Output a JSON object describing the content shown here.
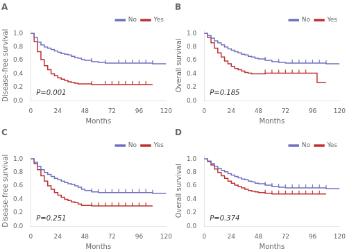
{
  "chart_data": [
    {
      "type": "line",
      "title": "A",
      "xlabel": "Months",
      "ylabel": "Disease-free survival",
      "annotation": "P=0.001",
      "xlim": [
        0,
        120
      ],
      "xticks": [
        0,
        24,
        48,
        72,
        96,
        120
      ],
      "ylim": [
        0,
        1.05
      ],
      "yticks": [
        {
          "value": 0,
          "label": "0.0"
        },
        0.2,
        0.4,
        0.6,
        0.8,
        {
          "value": 1.0,
          "label": "1.0"
        }
      ],
      "grid": false,
      "legend": "upper right",
      "line_style": "step",
      "series": [
        {
          "name": "No",
          "color": "#7070c0",
          "x": [
            0,
            3,
            6,
            9,
            12,
            15,
            18,
            21,
            24,
            27,
            30,
            33,
            36,
            39,
            42,
            45,
            48,
            54,
            60,
            66,
            72,
            78,
            84,
            90,
            96,
            102,
            108,
            120
          ],
          "values": [
            1.0,
            0.94,
            0.87,
            0.83,
            0.8,
            0.78,
            0.76,
            0.74,
            0.72,
            0.7,
            0.69,
            0.68,
            0.66,
            0.64,
            0.63,
            0.61,
            0.6,
            0.58,
            0.57,
            0.56,
            0.56,
            0.56,
            0.56,
            0.56,
            0.56,
            0.56,
            0.55,
            0.55
          ],
          "censor_x": [
            54,
            66,
            78,
            84,
            90,
            96,
            102,
            108
          ],
          "censor_y": [
            0.58,
            0.56,
            0.56,
            0.56,
            0.56,
            0.56,
            0.56,
            0.55
          ]
        },
        {
          "name": "Yes",
          "color": "#c03030",
          "x": [
            0,
            3,
            6,
            9,
            12,
            15,
            18,
            21,
            24,
            27,
            30,
            33,
            36,
            39,
            42,
            45,
            48,
            54,
            60,
            66,
            72,
            78,
            84,
            90,
            96,
            102,
            108
          ],
          "values": [
            1.0,
            0.88,
            0.73,
            0.61,
            0.52,
            0.46,
            0.4,
            0.37,
            0.34,
            0.32,
            0.3,
            0.28,
            0.27,
            0.26,
            0.25,
            0.25,
            0.25,
            0.24,
            0.24,
            0.24,
            0.24,
            0.24,
            0.24,
            0.24,
            0.24,
            0.24,
            0.24
          ],
          "censor_x": [
            54,
            66,
            72,
            78,
            84,
            90,
            96,
            102
          ],
          "censor_y": [
            0.24,
            0.24,
            0.24,
            0.24,
            0.24,
            0.24,
            0.24,
            0.24
          ]
        }
      ]
    },
    {
      "type": "line",
      "title": "B",
      "xlabel": "Months",
      "ylabel": "Overall survival",
      "annotation": "P=0.185",
      "xlim": [
        0,
        120
      ],
      "xticks": [
        0,
        24,
        48,
        72,
        96,
        120
      ],
      "ylim": [
        0,
        1.05
      ],
      "yticks": [
        {
          "value": 0,
          "label": "0.0"
        },
        0.2,
        0.4,
        0.6,
        0.8,
        {
          "value": 1.0,
          "label": "1.0"
        }
      ],
      "grid": false,
      "legend": "upper right",
      "line_style": "step",
      "series": [
        {
          "name": "No",
          "color": "#7070c0",
          "x": [
            0,
            3,
            6,
            9,
            12,
            15,
            18,
            21,
            24,
            27,
            30,
            33,
            36,
            39,
            42,
            45,
            48,
            54,
            60,
            66,
            72,
            78,
            84,
            90,
            96,
            102,
            108,
            120
          ],
          "values": [
            1.0,
            0.97,
            0.93,
            0.89,
            0.86,
            0.83,
            0.8,
            0.77,
            0.75,
            0.73,
            0.71,
            0.69,
            0.68,
            0.66,
            0.65,
            0.63,
            0.62,
            0.6,
            0.58,
            0.57,
            0.56,
            0.56,
            0.56,
            0.56,
            0.56,
            0.56,
            0.55,
            0.55
          ],
          "censor_x": [
            54,
            66,
            78,
            84,
            90,
            96,
            102,
            108
          ],
          "censor_y": [
            0.6,
            0.57,
            0.56,
            0.56,
            0.56,
            0.56,
            0.56,
            0.55
          ]
        },
        {
          "name": "Yes",
          "color": "#c03030",
          "x": [
            0,
            3,
            6,
            9,
            12,
            15,
            18,
            21,
            24,
            27,
            30,
            33,
            36,
            39,
            42,
            45,
            48,
            54,
            60,
            66,
            72,
            78,
            84,
            90,
            96,
            100,
            108
          ],
          "values": [
            1.0,
            0.94,
            0.86,
            0.78,
            0.71,
            0.65,
            0.59,
            0.55,
            0.51,
            0.48,
            0.46,
            0.44,
            0.42,
            0.41,
            0.4,
            0.4,
            0.4,
            0.41,
            0.41,
            0.41,
            0.41,
            0.41,
            0.41,
            0.41,
            0.41,
            0.27,
            0.27
          ],
          "censor_x": [
            54,
            60,
            66,
            72,
            78,
            84,
            90
          ],
          "censor_y": [
            0.41,
            0.41,
            0.41,
            0.41,
            0.41,
            0.41,
            0.41
          ]
        }
      ]
    },
    {
      "type": "line",
      "title": "C",
      "xlabel": "Months",
      "ylabel": "Disease-free survival",
      "annotation": "P=0.251",
      "xlim": [
        0,
        120
      ],
      "xticks": [
        0,
        24,
        48,
        72,
        96,
        120
      ],
      "ylim": [
        0,
        1.05
      ],
      "yticks": [
        {
          "value": 0,
          "label": "0.0"
        },
        0.2,
        0.4,
        0.6,
        0.8,
        {
          "value": 1.0,
          "label": "1.0"
        }
      ],
      "grid": false,
      "legend": "upper right",
      "line_style": "step",
      "series": [
        {
          "name": "No",
          "color": "#7070c0",
          "x": [
            0,
            3,
            6,
            9,
            12,
            15,
            18,
            21,
            24,
            27,
            30,
            33,
            36,
            39,
            42,
            45,
            48,
            54,
            60,
            66,
            72,
            78,
            84,
            90,
            96,
            102,
            108,
            120
          ],
          "values": [
            1.0,
            0.95,
            0.89,
            0.84,
            0.8,
            0.77,
            0.74,
            0.71,
            0.69,
            0.67,
            0.65,
            0.63,
            0.62,
            0.6,
            0.58,
            0.55,
            0.53,
            0.51,
            0.5,
            0.5,
            0.5,
            0.5,
            0.5,
            0.5,
            0.5,
            0.5,
            0.49,
            0.49
          ],
          "censor_x": [
            54,
            60,
            66,
            72,
            78,
            84,
            90,
            96,
            102,
            108
          ],
          "censor_y": [
            0.51,
            0.5,
            0.5,
            0.5,
            0.5,
            0.5,
            0.5,
            0.5,
            0.5,
            0.49
          ]
        },
        {
          "name": "Yes",
          "color": "#c03030",
          "x": [
            0,
            3,
            6,
            9,
            12,
            15,
            18,
            21,
            24,
            27,
            30,
            33,
            36,
            39,
            42,
            45,
            48,
            54,
            60,
            66,
            72,
            78,
            84,
            90,
            96,
            102,
            108
          ],
          "values": [
            1.0,
            0.93,
            0.84,
            0.75,
            0.67,
            0.6,
            0.55,
            0.5,
            0.46,
            0.43,
            0.4,
            0.38,
            0.36,
            0.35,
            0.33,
            0.31,
            0.31,
            0.3,
            0.3,
            0.3,
            0.3,
            0.3,
            0.3,
            0.3,
            0.3,
            0.3,
            0.3
          ],
          "censor_x": [
            54,
            60,
            66,
            72,
            78,
            84,
            90,
            96,
            102
          ],
          "censor_y": [
            0.3,
            0.3,
            0.3,
            0.3,
            0.3,
            0.3,
            0.3,
            0.3,
            0.3
          ]
        }
      ]
    },
    {
      "type": "line",
      "title": "D",
      "xlabel": "Months",
      "ylabel": "Overall survival",
      "annotation": "P=0.374",
      "xlim": [
        0,
        120
      ],
      "xticks": [
        0,
        24,
        48,
        72,
        96,
        120
      ],
      "ylim": [
        0,
        1.05
      ],
      "yticks": [
        {
          "value": 0,
          "label": "0.0"
        },
        0.2,
        0.4,
        0.6,
        0.8,
        {
          "value": 1.0,
          "label": "1.0"
        }
      ],
      "grid": false,
      "legend": "upper right",
      "line_style": "step",
      "series": [
        {
          "name": "No",
          "color": "#7070c0",
          "x": [
            0,
            3,
            6,
            9,
            12,
            15,
            18,
            21,
            24,
            27,
            30,
            33,
            36,
            39,
            42,
            45,
            48,
            54,
            60,
            66,
            72,
            78,
            84,
            90,
            96,
            102,
            108,
            120
          ],
          "values": [
            1.0,
            0.97,
            0.93,
            0.89,
            0.86,
            0.83,
            0.81,
            0.78,
            0.76,
            0.74,
            0.72,
            0.7,
            0.69,
            0.67,
            0.66,
            0.64,
            0.63,
            0.61,
            0.59,
            0.58,
            0.57,
            0.57,
            0.57,
            0.57,
            0.57,
            0.57,
            0.56,
            0.56
          ],
          "censor_x": [
            54,
            60,
            66,
            72,
            78,
            84,
            90,
            96,
            102,
            108
          ],
          "censor_y": [
            0.61,
            0.59,
            0.58,
            0.57,
            0.57,
            0.57,
            0.57,
            0.57,
            0.57,
            0.56
          ]
        },
        {
          "name": "Yes",
          "color": "#c03030",
          "x": [
            0,
            3,
            6,
            9,
            12,
            15,
            18,
            21,
            24,
            27,
            30,
            33,
            36,
            39,
            42,
            45,
            48,
            54,
            60,
            66,
            72,
            78,
            84,
            90,
            96,
            102,
            108
          ],
          "values": [
            1.0,
            0.96,
            0.91,
            0.85,
            0.8,
            0.75,
            0.71,
            0.67,
            0.64,
            0.61,
            0.59,
            0.57,
            0.55,
            0.53,
            0.52,
            0.51,
            0.5,
            0.49,
            0.48,
            0.48,
            0.48,
            0.48,
            0.48,
            0.48,
            0.48,
            0.48,
            0.48
          ],
          "censor_x": [
            54,
            60,
            66,
            72,
            78,
            84,
            90,
            96,
            102
          ],
          "censor_y": [
            0.49,
            0.48,
            0.48,
            0.48,
            0.48,
            0.48,
            0.48,
            0.48,
            0.48
          ]
        }
      ]
    }
  ]
}
